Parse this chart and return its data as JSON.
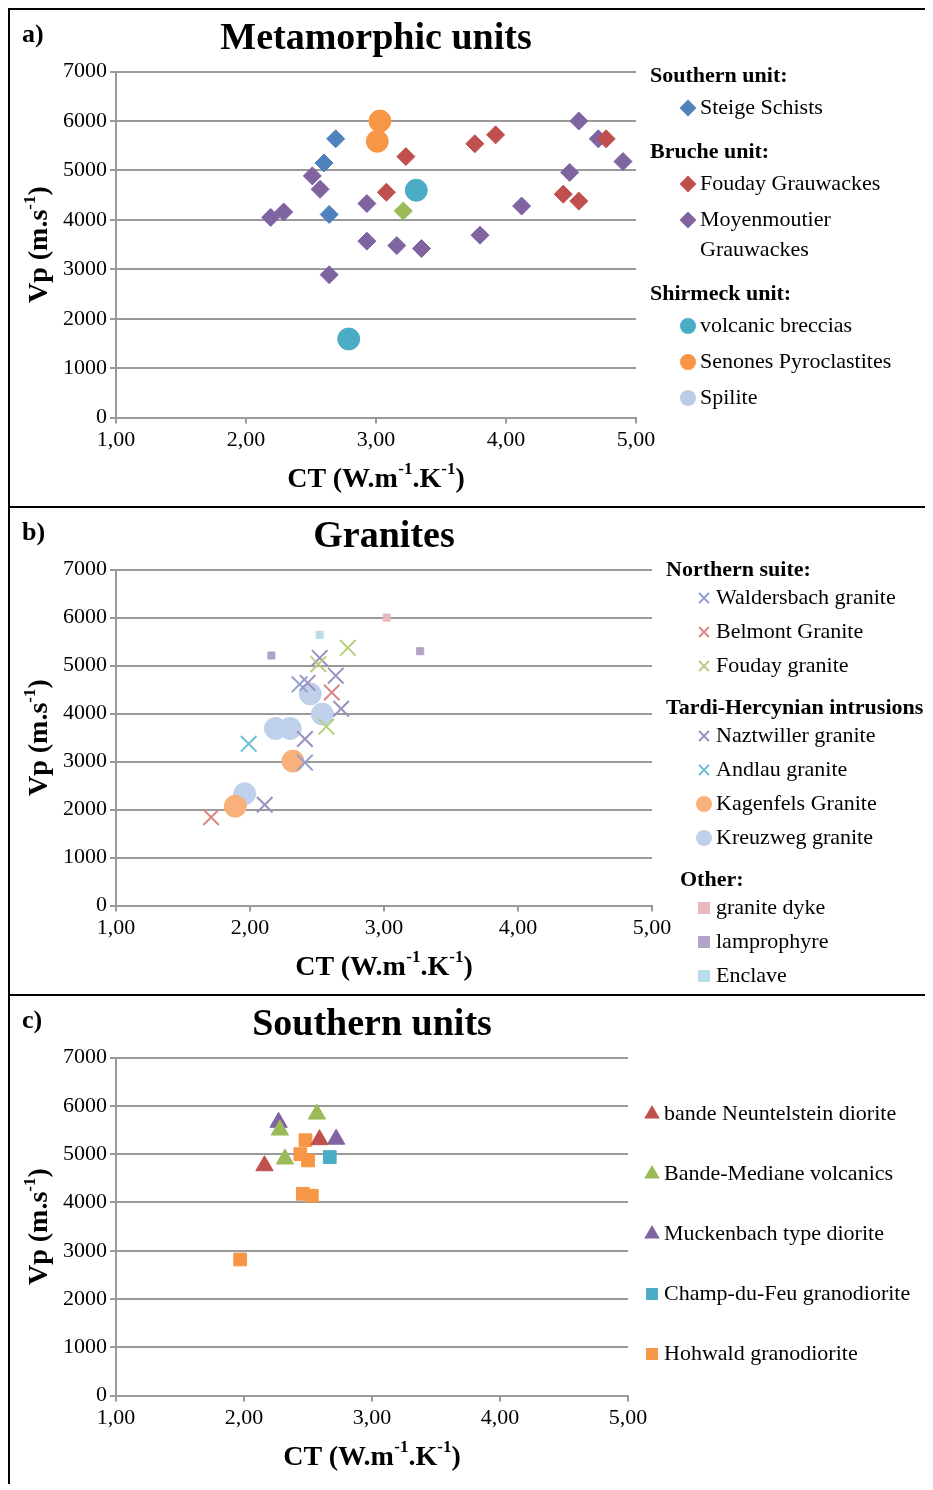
{
  "chart_data": [
    {
      "type": "scatter",
      "title": "Metamorphic units",
      "xlabel": "CT (W.m$^{-1}$.K$^{-1}$)",
      "ylabel": "Vp (m.s$^{-1}$)",
      "xlim": [
        1,
        5
      ],
      "xticks": [
        {
          "value": 1,
          "label": "1,00"
        },
        {
          "value": 2,
          "label": "2,00"
        },
        {
          "value": 3,
          "label": "3,00"
        },
        {
          "value": 4,
          "label": "4,00"
        },
        {
          "value": 5,
          "label": "5,00"
        }
      ],
      "ylim": [
        0,
        7000
      ],
      "yticks": [
        0,
        1000,
        2000,
        3000,
        4000,
        5000,
        6000,
        7000
      ],
      "grid": "y",
      "legend": "right",
      "annotations": [
        "a)",
        "Southern unit:",
        "Bruche unit:",
        "Shirmeck unit:"
      ],
      "series": [
        {
          "name": "Steige Schists",
          "color": "#4f81bd",
          "marker": "diamond",
          "x": [
            2.69,
            2.6,
            2.64
          ],
          "values": [
            5640,
            5150,
            4110
          ]
        },
        {
          "name": "Fouday Grauwackes",
          "color": "#c0504d",
          "marker": "diamond",
          "x": [
            3.23,
            3.08,
            3.76,
            3.92,
            4.77,
            4.44,
            4.56
          ],
          "values": [
            5280,
            4560,
            5540,
            5720,
            5640,
            4520,
            4380
          ]
        },
        {
          "name": "Moyenmoutier Grauwackes",
          "color": "#8064a2",
          "marker": "diamond",
          "x": [
            2.19,
            2.29,
            2.51,
            2.57,
            2.93,
            2.64,
            2.93,
            3.16,
            3.35,
            3.8,
            4.12,
            4.49,
            4.56,
            4.71,
            4.9
          ],
          "values": [
            4050,
            4160,
            4890,
            4620,
            4330,
            2890,
            3570,
            3480,
            3420,
            3690,
            4280,
            4960,
            6000,
            5640,
            5180
          ]
        },
        {
          "name": "volcanic breccias",
          "color": "#4bacc6",
          "marker": "circle",
          "x": [
            3.31,
            2.79
          ],
          "values": [
            4600,
            1590
          ]
        },
        {
          "name": "Senones Pyroclastites",
          "color": "#f79646",
          "marker": "circle",
          "x": [
            3.03,
            3.01
          ],
          "values": [
            6000,
            5590
          ]
        },
        {
          "name": "Spilite",
          "color": "#b9cde5",
          "marker": "circle"
        },
        {
          "color": "#9bbb59",
          "marker": "diamond",
          "x": [
            3.21
          ],
          "values": [
            4180
          ]
        }
      ]
    },
    {
      "type": "scatter",
      "title": "Granites",
      "xlabel": "CT (W.m$^{-1}$.K$^{-1}$)",
      "ylabel": "Vp (m.s$^{-1}$)",
      "xlim": [
        1,
        5
      ],
      "xticks": [
        {
          "value": 1,
          "label": "1,00"
        },
        {
          "value": 2,
          "label": "2,00"
        },
        {
          "value": 3,
          "label": "3,00"
        },
        {
          "value": 4,
          "label": "4,00"
        },
        {
          "value": 5,
          "label": "5,00"
        }
      ],
      "ylim": [
        0,
        7000
      ],
      "yticks": [
        0,
        1000,
        2000,
        3000,
        4000,
        5000,
        6000,
        7000
      ],
      "grid": "y",
      "legend": "right",
      "annotations": [
        "b)",
        "Northern suite:",
        "Tardi-Hercynian intrusions",
        "Other:"
      ],
      "series": [
        {
          "name": "Waldersbach granite",
          "color": "#8ea1cf",
          "marker": "cross",
          "x": [
            2.37,
            2.41
          ],
          "values": [
            4610,
            2980
          ]
        },
        {
          "name": "Belmont Granite",
          "color": "#d98886",
          "marker": "cross",
          "x": [
            1.71,
            2.61
          ],
          "values": [
            1840,
            4440
          ]
        },
        {
          "name": "Fouday granite",
          "color": "#b5cf7f",
          "marker": "cross",
          "x": [
            2.73,
            2.51,
            2.57
          ],
          "values": [
            5370,
            5030,
            3730
          ]
        },
        {
          "name": "Naztwiller granite",
          "color": "#9d8fc0",
          "marker": "cross",
          "x": [
            2.52,
            2.64,
            2.68,
            2.41,
            2.11,
            2.43
          ],
          "values": [
            5160,
            4790,
            4100,
            3470,
            2100,
            4640
          ]
        },
        {
          "name": "Andlau granite",
          "color": "#6ec0d4",
          "marker": "cross",
          "x": [
            1.99
          ],
          "values": [
            3370
          ]
        },
        {
          "name": "Kagenfels Granite",
          "color": "#fab07a",
          "marker": "circle",
          "x": [
            2.32,
            1.89
          ],
          "values": [
            3010,
            2070
          ]
        },
        {
          "name": "Kreuzweg granite",
          "color": "#bfd0ea",
          "marker": "circle",
          "x": [
            2.45,
            2.54,
            2.19,
            2.3,
            1.96
          ],
          "values": [
            4410,
            3990,
            3690,
            3690,
            2330
          ]
        },
        {
          "name": "granite dyke",
          "color": "#e6b9b8",
          "marker": "square",
          "x": [
            3.02
          ],
          "values": [
            6000
          ]
        },
        {
          "name": "lamprophyre",
          "color": "#b3a2c7",
          "marker": "square",
          "x": [
            2.16,
            3.27
          ],
          "values": [
            5210,
            5300
          ]
        },
        {
          "name": "Enclave",
          "color": "#b7dde8",
          "marker": "square",
          "x": [
            2.52
          ],
          "values": [
            5640
          ]
        }
      ]
    },
    {
      "type": "scatter",
      "title": "Southern units",
      "xlabel": "CT (W.m$^{-1}$.K$^{-1}$)",
      "ylabel": "Vp (m.s$^{-1}$)",
      "xlim": [
        1,
        5
      ],
      "xticks": [
        {
          "value": 1,
          "label": "1,00"
        },
        {
          "value": 2,
          "label": "2,00"
        },
        {
          "value": 3,
          "label": "3,00"
        },
        {
          "value": 4,
          "label": "4,00"
        },
        {
          "value": 5,
          "label": "5,00"
        }
      ],
      "ylim": [
        0,
        7000
      ],
      "yticks": [
        0,
        1000,
        2000,
        3000,
        4000,
        5000,
        6000,
        7000
      ],
      "grid": "y",
      "legend": "right",
      "annotations": [
        "c)"
      ],
      "series": [
        {
          "name": "bande Neuntelstein diorite",
          "color": "#c0504d",
          "marker": "triangle",
          "x": [
            2.16,
            2.59
          ],
          "values": [
            4760,
            5300
          ]
        },
        {
          "name": "Bande-Mediane volcanics",
          "color": "#9bbb59",
          "marker": "triangle",
          "x": [
            2.57,
            2.28,
            2.32
          ],
          "values": [
            5830,
            5500,
            4900
          ]
        },
        {
          "name": "Muckenbach type diorite",
          "color": "#8064a2",
          "marker": "triangle",
          "x": [
            2.27,
            2.72
          ],
          "values": [
            5660,
            5310
          ]
        },
        {
          "name": "Champ-du-Feu granodiorite",
          "color": "#4bacc6",
          "marker": "square",
          "x": [
            2.67
          ],
          "values": [
            4940
          ]
        },
        {
          "name": "Hohwald granodiorite",
          "color": "#f79646",
          "marker": "square",
          "x": [
            2.48,
            2.44,
            2.5,
            2.46,
            2.53,
            1.97
          ],
          "values": [
            5290,
            5000,
            4870,
            4180,
            4140,
            2820
          ]
        }
      ]
    }
  ]
}
